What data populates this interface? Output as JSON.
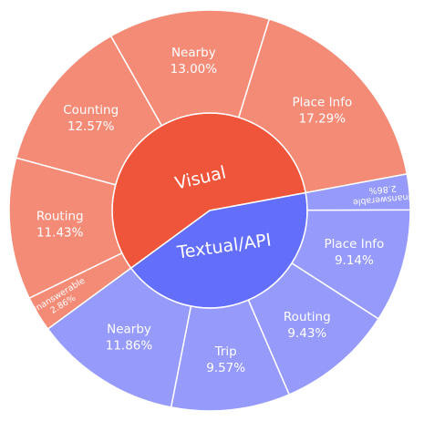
{
  "chart_data": {
    "type": "sunburst",
    "colors": {
      "visual_inner": "#ef553b",
      "visual_outer": "#f48b76",
      "textual_inner": "#636efa",
      "textual_outer": "#959afb",
      "separator": "#ffffff"
    },
    "groups": [
      {
        "name": "Visual",
        "children": [
          {
            "label": "Place Info",
            "pct": "17.29%",
            "value": 17.29
          },
          {
            "label": "Nearby",
            "pct": "13.00%",
            "value": 13.0
          },
          {
            "label": "Counting",
            "pct": "12.57%",
            "value": 12.57
          },
          {
            "label": "Routing",
            "pct": "11.43%",
            "value": 11.43
          },
          {
            "label": "Unanswerable",
            "pct": "2.86%",
            "value": 2.86
          }
        ]
      },
      {
        "name": "Textual/API",
        "children": [
          {
            "label": "Nearby",
            "pct": "11.86%",
            "value": 11.86
          },
          {
            "label": "Trip",
            "pct": "9.57%",
            "value": 9.57
          },
          {
            "label": "Routing",
            "pct": "9.43%",
            "value": 9.43
          },
          {
            "label": "Place Info",
            "pct": "9.14%",
            "value": 9.14
          },
          {
            "label": "Unanswerable",
            "pct": "2.86%",
            "value": 2.86
          }
        ]
      }
    ]
  }
}
